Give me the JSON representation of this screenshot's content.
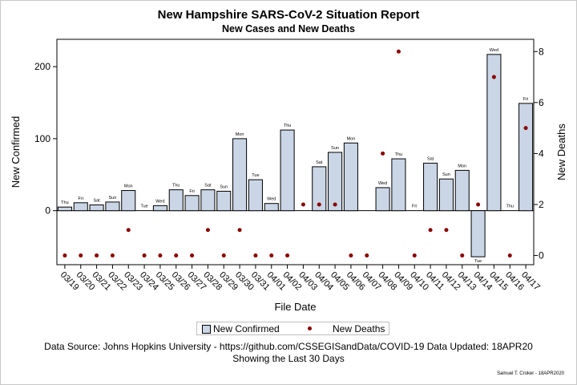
{
  "title": "New Hampshire SARS-CoV-2 Situation Report",
  "subtitle": "New Cases and New Deaths",
  "footnote1": "Data Source: Johns Hopkins University - https://github.com/CSSEGISandData/COVID-19 Data Updated: 18APR20",
  "footnote2": "Showing the Last 30 Days",
  "credit": "Samuel T. Croker - 18APR2020",
  "legend": {
    "bar_label": "New Confirmed",
    "dot_label": "New Deaths"
  },
  "colors": {
    "bar_fill": "#cad6e6",
    "bar_edge": "#000000",
    "dot": "#8b0000"
  },
  "chart_data": {
    "type": "bar",
    "xlabel": "File Date",
    "ylabel": "New Confirmed",
    "y2label": "New Deaths",
    "ylim": [
      -75,
      238
    ],
    "y2lim": [
      -0.36,
      8.48
    ],
    "yticks": [
      0,
      100,
      200
    ],
    "y2ticks": [
      0,
      2,
      4,
      6,
      8
    ],
    "grid": false,
    "legend_position": "bottom",
    "categories": [
      "03/19",
      "03/20",
      "03/21",
      "03/22",
      "03/23",
      "03/24",
      "03/25",
      "03/26",
      "03/27",
      "03/28",
      "03/29",
      "03/30",
      "03/31",
      "04/01",
      "04/02",
      "04/03",
      "04/04",
      "04/05",
      "04/06",
      "04/07",
      "04/08",
      "04/09",
      "04/10",
      "04/11",
      "04/12",
      "04/13",
      "04/14",
      "04/15",
      "04/16",
      "04/17"
    ],
    "day_labels": [
      "Thu",
      "Fri",
      "Sat",
      "Sun",
      "Mon",
      "Tue",
      "Wed",
      "Thu",
      "Fri",
      "Sat",
      "Sun",
      "Mon",
      "Tue",
      "Wed",
      "Thu",
      "",
      "Sat",
      "Sun",
      "Mon",
      "",
      "Wed",
      "Thu",
      "Fri",
      "Sat",
      "Sun",
      "Mon",
      "Tue",
      "Wed",
      "Thu",
      "Fri"
    ],
    "series": [
      {
        "name": "New Confirmed",
        "type": "bar",
        "axis": "left",
        "values": [
          5,
          11,
          8,
          12,
          28,
          0,
          7,
          29,
          21,
          29,
          27,
          100,
          43,
          10,
          112,
          0,
          61,
          81,
          94,
          0,
          32,
          72,
          0,
          66,
          44,
          56,
          -64,
          217,
          0,
          149
        ]
      },
      {
        "name": "New Deaths",
        "type": "scatter",
        "axis": "right",
        "values": [
          0,
          0,
          0,
          0,
          1,
          0,
          0,
          0,
          0,
          1,
          0,
          1,
          0,
          0,
          0,
          2,
          2,
          2,
          0,
          0,
          4,
          8,
          0,
          1,
          1,
          0,
          2,
          7,
          0,
          5
        ]
      }
    ]
  }
}
